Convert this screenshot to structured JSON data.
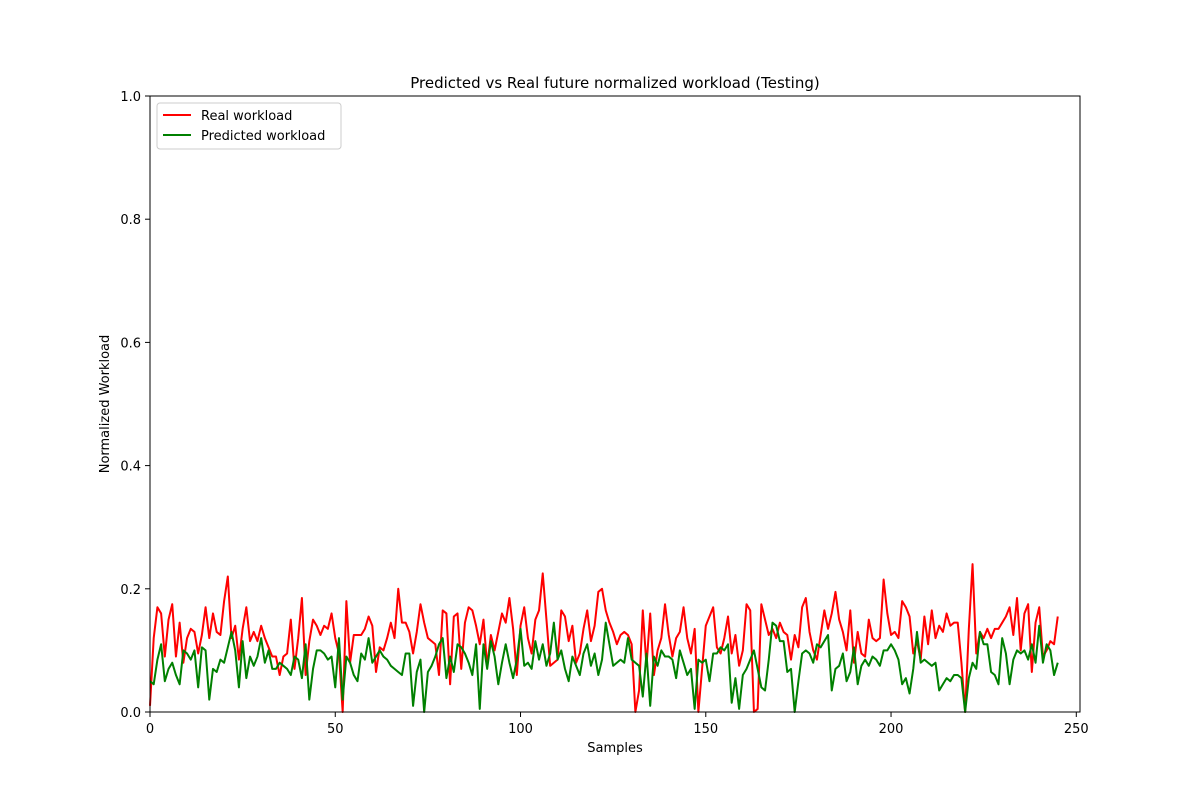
{
  "chart_data": {
    "type": "line",
    "title": "Predicted vs Real future normalized workload (Testing)",
    "xlabel": "Samples",
    "ylabel": "Normalized Workload",
    "xlim": [
      0,
      251
    ],
    "ylim": [
      0.0,
      1.0
    ],
    "xticks": [
      "0",
      "50",
      "100",
      "150",
      "200",
      "250"
    ],
    "yticks": [
      "0.0",
      "0.2",
      "0.4",
      "0.6",
      "0.8",
      "1.0"
    ],
    "grid": false,
    "legend_position": "upper left",
    "series": [
      {
        "name": "Real workload",
        "color": "#ff0000",
        "values": [
          0.01,
          0.12,
          0.17,
          0.16,
          0.09,
          0.15,
          0.175,
          0.09,
          0.145,
          0.08,
          0.12,
          0.135,
          0.13,
          0.095,
          0.125,
          0.17,
          0.12,
          0.16,
          0.13,
          0.125,
          0.18,
          0.22,
          0.12,
          0.14,
          0.085,
          0.135,
          0.17,
          0.115,
          0.13,
          0.115,
          0.14,
          0.12,
          0.105,
          0.09,
          0.09,
          0.06,
          0.09,
          0.095,
          0.15,
          0.07,
          0.12,
          0.185,
          0.06,
          0.115,
          0.15,
          0.14,
          0.125,
          0.14,
          0.135,
          0.16,
          0.12,
          0.095,
          0.0,
          0.18,
          0.08,
          0.125,
          0.125,
          0.125,
          0.135,
          0.155,
          0.14,
          0.065,
          0.105,
          0.1,
          0.12,
          0.145,
          0.12,
          0.2,
          0.145,
          0.145,
          0.13,
          0.095,
          0.13,
          0.175,
          0.145,
          0.12,
          0.115,
          0.11,
          0.06,
          0.165,
          0.16,
          0.045,
          0.155,
          0.16,
          0.07,
          0.145,
          0.17,
          0.165,
          0.14,
          0.11,
          0.15,
          0.075,
          0.125,
          0.1,
          0.13,
          0.16,
          0.145,
          0.185,
          0.135,
          0.06,
          0.14,
          0.17,
          0.12,
          0.095,
          0.15,
          0.165,
          0.225,
          0.15,
          0.075,
          0.08,
          0.085,
          0.165,
          0.155,
          0.115,
          0.14,
          0.08,
          0.095,
          0.135,
          0.165,
          0.115,
          0.14,
          0.195,
          0.2,
          0.165,
          0.145,
          0.13,
          0.11,
          0.125,
          0.13,
          0.125,
          0.11,
          0.0,
          0.035,
          0.165,
          0.075,
          0.16,
          0.06,
          0.1,
          0.12,
          0.175,
          0.125,
          0.09,
          0.12,
          0.13,
          0.17,
          0.12,
          0.095,
          0.135,
          0.0,
          0.07,
          0.14,
          0.155,
          0.17,
          0.105,
          0.095,
          0.12,
          0.155,
          0.095,
          0.125,
          0.075,
          0.1,
          0.175,
          0.165,
          0.0,
          0.005,
          0.175,
          0.15,
          0.125,
          0.135,
          0.12,
          0.145,
          0.13,
          0.125,
          0.085,
          0.125,
          0.105,
          0.17,
          0.185,
          0.13,
          0.1,
          0.085,
          0.125,
          0.165,
          0.135,
          0.16,
          0.195,
          0.15,
          0.13,
          0.1,
          0.165,
          0.08,
          0.13,
          0.095,
          0.09,
          0.15,
          0.12,
          0.115,
          0.12,
          0.215,
          0.16,
          0.125,
          0.13,
          0.12,
          0.18,
          0.17,
          0.155,
          0.095,
          0.115,
          0.085,
          0.155,
          0.11,
          0.165,
          0.12,
          0.14,
          0.13,
          0.16,
          0.14,
          0.145,
          0.145,
          0.08,
          0.0,
          0.135,
          0.24,
          0.095,
          0.13,
          0.12,
          0.135,
          0.12,
          0.135,
          0.135,
          0.145,
          0.155,
          0.17,
          0.125,
          0.185,
          0.1,
          0.16,
          0.175,
          0.065,
          0.145,
          0.17,
          0.09,
          0.1,
          0.115,
          0.11,
          0.155
        ]
      },
      {
        "name": "Predicted workload",
        "color": "#008000",
        "values": [
          0.05,
          0.045,
          0.085,
          0.11,
          0.05,
          0.07,
          0.08,
          0.06,
          0.045,
          0.1,
          0.095,
          0.085,
          0.1,
          0.04,
          0.105,
          0.1,
          0.02,
          0.07,
          0.065,
          0.085,
          0.08,
          0.105,
          0.13,
          0.1,
          0.04,
          0.115,
          0.055,
          0.09,
          0.075,
          0.09,
          0.12,
          0.08,
          0.1,
          0.07,
          0.07,
          0.08,
          0.075,
          0.07,
          0.06,
          0.09,
          0.085,
          0.055,
          0.11,
          0.02,
          0.07,
          0.1,
          0.1,
          0.095,
          0.085,
          0.09,
          0.04,
          0.12,
          0.02,
          0.09,
          0.08,
          0.06,
          0.05,
          0.095,
          0.085,
          0.12,
          0.08,
          0.09,
          0.1,
          0.09,
          0.085,
          0.075,
          0.07,
          0.065,
          0.06,
          0.095,
          0.095,
          0.01,
          0.065,
          0.085,
          0.0,
          0.065,
          0.075,
          0.09,
          0.11,
          0.12,
          0.055,
          0.09,
          0.065,
          0.11,
          0.105,
          0.095,
          0.08,
          0.06,
          0.11,
          0.005,
          0.11,
          0.07,
          0.115,
          0.09,
          0.045,
          0.08,
          0.11,
          0.08,
          0.055,
          0.085,
          0.135,
          0.075,
          0.08,
          0.07,
          0.115,
          0.085,
          0.11,
          0.075,
          0.095,
          0.145,
          0.085,
          0.1,
          0.07,
          0.05,
          0.09,
          0.075,
          0.06,
          0.095,
          0.11,
          0.075,
          0.095,
          0.06,
          0.085,
          0.145,
          0.11,
          0.075,
          0.08,
          0.085,
          0.08,
          0.12,
          0.085,
          0.08,
          0.075,
          0.025,
          0.095,
          0.01,
          0.09,
          0.075,
          0.1,
          0.09,
          0.09,
          0.085,
          0.055,
          0.1,
          0.08,
          0.06,
          0.07,
          0.005,
          0.085,
          0.08,
          0.085,
          0.05,
          0.095,
          0.095,
          0.105,
          0.1,
          0.11,
          0.015,
          0.055,
          0.005,
          0.06,
          0.07,
          0.085,
          0.1,
          0.07,
          0.04,
          0.035,
          0.085,
          0.145,
          0.14,
          0.115,
          0.115,
          0.065,
          0.07,
          0.0,
          0.05,
          0.095,
          0.1,
          0.095,
          0.08,
          0.11,
          0.105,
          0.115,
          0.125,
          0.035,
          0.07,
          0.075,
          0.095,
          0.05,
          0.065,
          0.105,
          0.045,
          0.075,
          0.085,
          0.075,
          0.09,
          0.085,
          0.075,
          0.1,
          0.1,
          0.11,
          0.1,
          0.085,
          0.045,
          0.055,
          0.03,
          0.07,
          0.13,
          0.08,
          0.085,
          0.08,
          0.075,
          0.08,
          0.035,
          0.045,
          0.055,
          0.05,
          0.06,
          0.06,
          0.055,
          0.0,
          0.055,
          0.08,
          0.07,
          0.13,
          0.11,
          0.11,
          0.065,
          0.06,
          0.045,
          0.12,
          0.095,
          0.045,
          0.085,
          0.1,
          0.095,
          0.1,
          0.085,
          0.11,
          0.08,
          0.14,
          0.08,
          0.11,
          0.1,
          0.06,
          0.08
        ]
      }
    ]
  }
}
